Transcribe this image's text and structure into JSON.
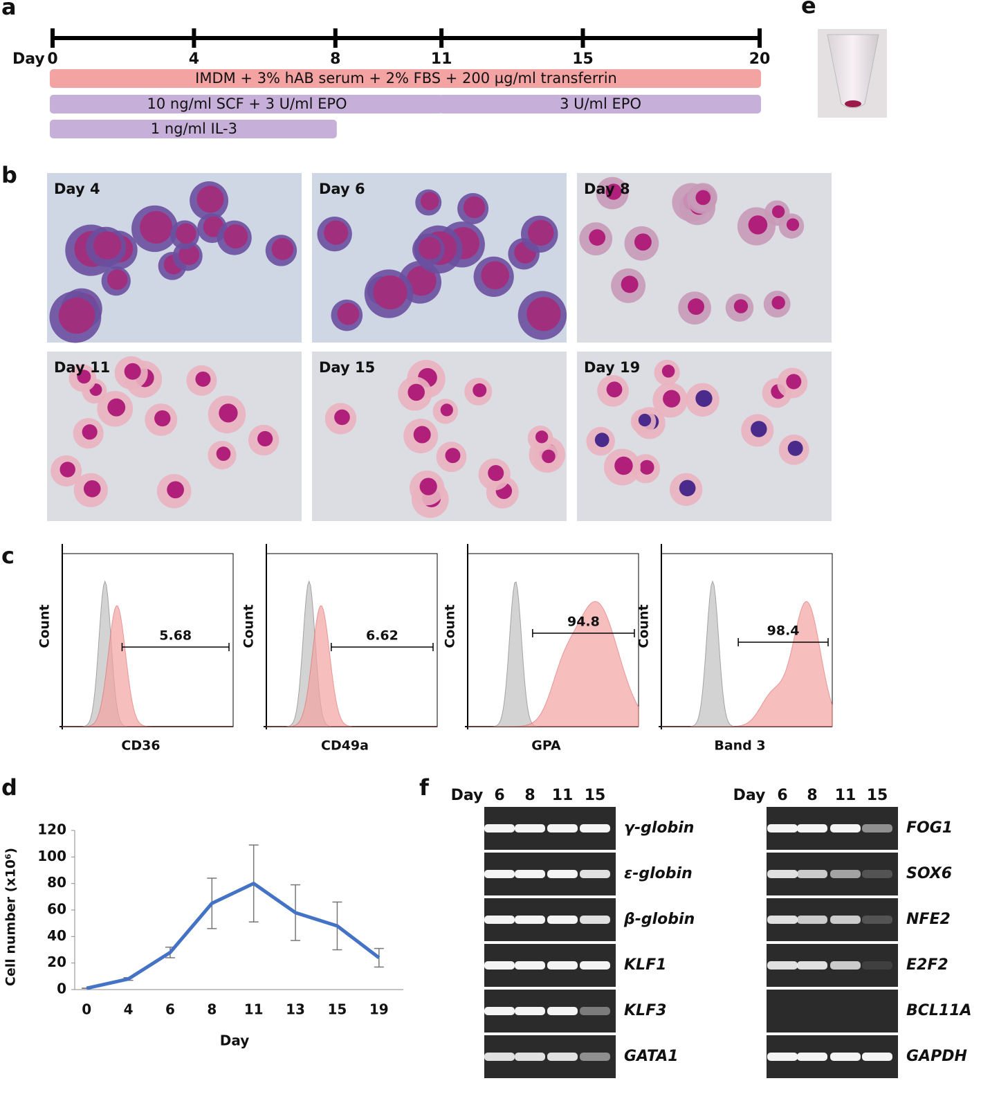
{
  "panel_labels": [
    "a",
    "b",
    "c",
    "d",
    "e",
    "f"
  ],
  "timeline": {
    "day_label": "Day",
    "ticks": [
      0,
      4,
      8,
      11,
      15,
      20
    ],
    "bars": [
      {
        "label": "IMDM + 3% hAB serum + 2% FBS + 200  µg/ml transferrin",
        "start": 0,
        "end": 20
      },
      {
        "label": "10 ng/ml SCF + 3 U/ml EPO",
        "start": 0,
        "end": 11
      },
      {
        "label": "3 U/ml EPO",
        "start": 11,
        "end": 20
      },
      {
        "label": "1 ng/ml IL-3",
        "start": 0,
        "end": 8
      }
    ]
  },
  "micrographs": [
    "Day 4",
    "Day 6",
    "Day 8",
    "Day 11",
    "Day 15",
    "Day 19"
  ],
  "flow": {
    "y_label": "Count",
    "panels": [
      {
        "marker": "CD36",
        "gate": 5.68
      },
      {
        "marker": "CD49a",
        "gate": 6.62
      },
      {
        "marker": "GPA",
        "gate": 94.8
      },
      {
        "marker": "Band 3",
        "gate": 98.4
      }
    ]
  },
  "chart_data": {
    "type": "line",
    "x_label": "Day",
    "y_label": "Cell number (x10⁶)",
    "categories": [
      "0",
      "4",
      "6",
      "8",
      "11",
      "13",
      "15",
      "19"
    ],
    "values": [
      1,
      8,
      28,
      65,
      80,
      58,
      48,
      24
    ],
    "errors": [
      0,
      1,
      4,
      19,
      29,
      21,
      18,
      7
    ],
    "color": "#4472c4",
    "ylim": [
      0,
      120
    ],
    "yticks": [
      0,
      20,
      40,
      60,
      80,
      100,
      120
    ]
  },
  "gels": [
    {
      "day_label": "Day",
      "lanes": [
        6,
        8,
        11,
        15
      ],
      "rows": [
        {
          "gene": "γ-globin",
          "bands": [
            1,
            1,
            1,
            1
          ]
        },
        {
          "gene": "ε-globin",
          "bands": [
            1,
            1,
            1,
            0.9
          ]
        },
        {
          "gene": "β-globin",
          "bands": [
            1,
            1,
            1,
            0.9
          ]
        },
        {
          "gene": "KLF1",
          "bands": [
            1,
            1,
            1,
            1
          ]
        },
        {
          "gene": "KLF3",
          "bands": [
            1,
            1,
            1,
            0.4
          ]
        },
        {
          "gene": "GATA1",
          "bands": [
            0.9,
            0.9,
            0.9,
            0.5
          ]
        }
      ]
    },
    {
      "day_label": "Day",
      "lanes": [
        6,
        8,
        11,
        15
      ],
      "rows": [
        {
          "gene": "FOG1",
          "bands": [
            1,
            1,
            1,
            0.5
          ]
        },
        {
          "gene": "SOX6",
          "bands": [
            0.9,
            0.8,
            0.6,
            0.2
          ]
        },
        {
          "gene": "NFE2",
          "bands": [
            0.9,
            0.8,
            0.8,
            0.2
          ]
        },
        {
          "gene": "E2F2",
          "bands": [
            0.9,
            0.9,
            0.8,
            0.1
          ]
        },
        {
          "gene": "BCL11A",
          "bands": [
            0,
            0,
            0,
            0
          ]
        },
        {
          "gene": "GAPDH",
          "bands": [
            1,
            1,
            1,
            1
          ]
        }
      ]
    }
  ]
}
